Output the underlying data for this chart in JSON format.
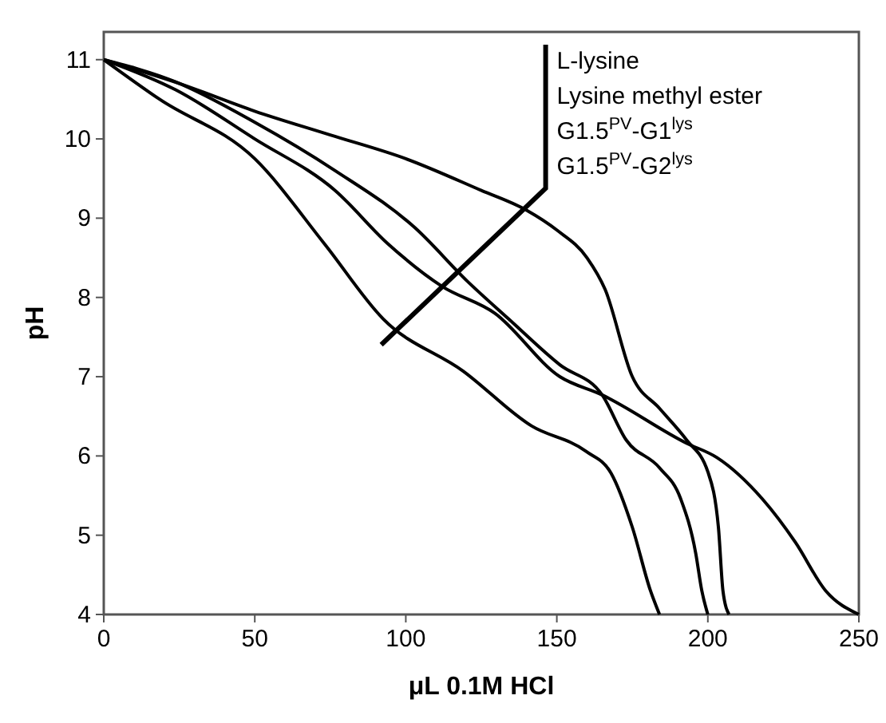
{
  "chart_data": {
    "type": "line",
    "xlabel": "μL 0.1M HCl",
    "ylabel": "pH",
    "xlim": [
      0,
      250
    ],
    "ylim": [
      4,
      11.35
    ],
    "xticks": [
      0,
      50,
      100,
      150,
      200,
      250
    ],
    "yticks": [
      4,
      5,
      6,
      7,
      8,
      9,
      10,
      11
    ],
    "grid": false,
    "line_style": "solid",
    "annotations": [
      "L-lysine",
      "Lysine methyl ester",
      "G1.5$^{PV}$-G1$^{lys}$",
      "G1.5$^{PV}$-G2$^{lys}$"
    ],
    "series": [
      {
        "color": "#000000",
        "x": [
          0,
          25,
          50,
          75,
          100,
          125,
          140,
          150,
          160,
          166,
          175,
          184,
          193,
          200,
          203.5,
          205,
          207
        ],
        "values": [
          11,
          10.7,
          10.35,
          10.05,
          9.75,
          9.35,
          9.1,
          8.85,
          8.5,
          8.1,
          7.0,
          6.6,
          6.2,
          5.8,
          5.1,
          4.3,
          4.0
        ]
      },
      {
        "color": "#000000",
        "x": [
          0,
          23.8,
          50,
          76.6,
          103,
          120.5,
          134,
          151,
          165,
          173,
          184,
          191,
          196,
          198,
          200
        ],
        "values": [
          11,
          10.72,
          10.21,
          9.6,
          8.88,
          8.2,
          7.73,
          7.15,
          6.77,
          6.2,
          5.85,
          5.46,
          4.77,
          4.3,
          4.0
        ]
      },
      {
        "color": "#000000",
        "x": [
          0,
          23.8,
          50,
          76.6,
          94,
          112,
          129.5,
          151,
          165,
          193,
          203,
          218,
          229,
          239,
          250
        ],
        "values": [
          11,
          10.62,
          10.0,
          9.35,
          8.68,
          8.14,
          7.8,
          7.0,
          6.77,
          6.16,
          5.98,
          5.46,
          4.91,
          4.3,
          4.0
        ]
      },
      {
        "color": "#000000",
        "x": [
          0,
          18.5,
          50,
          73,
          92.5,
          119,
          141.6,
          159.6,
          168,
          175,
          181,
          184
        ],
        "values": [
          11,
          10.5,
          9.75,
          8.68,
          7.73,
          7.07,
          6.38,
          6.06,
          5.78,
          5.1,
          4.3,
          4.0
        ]
      }
    ]
  }
}
